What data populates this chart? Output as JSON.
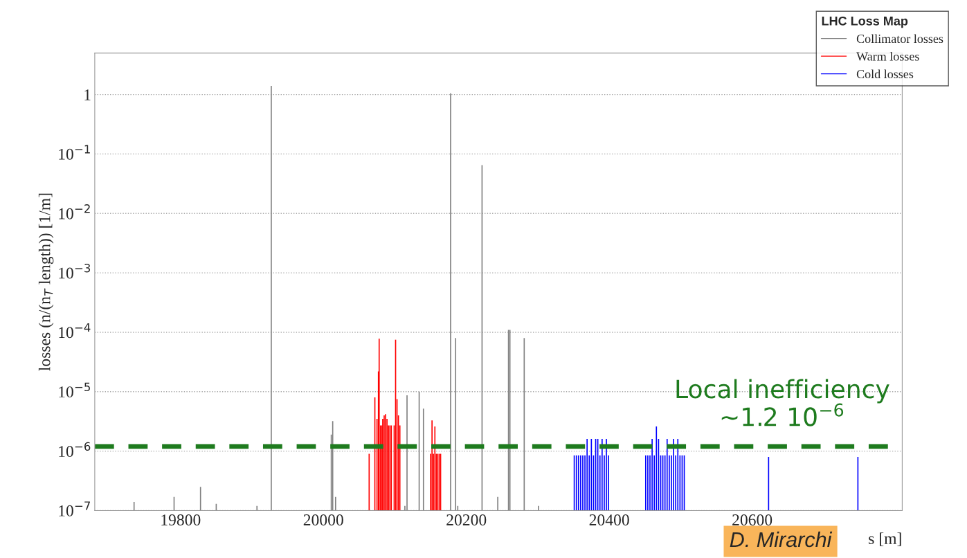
{
  "chart_data": {
    "type": "bar",
    "legend_title": "LHC Loss Map",
    "xlabel": "s [m]",
    "ylabel": "losses (n/(n$_{T}$ length)) [1/m]",
    "series": [
      {
        "name": "Collimator losses",
        "color": "#808080",
        "x": [
          19735,
          19791,
          19828,
          19850,
          19907,
          19927,
          20011,
          20013,
          20017,
          20114,
          20117,
          20134,
          20140,
          20178,
          20185,
          20188,
          20222,
          20244,
          20259,
          20261,
          20281,
          20301
        ],
        "values": [
          1.4e-07,
          1.7e-07,
          2.5e-07,
          1.3e-07,
          1.2e-07,
          1.4,
          1.9e-06,
          3.2e-06,
          1.7e-07,
          1.2e-07,
          8.7e-06,
          1e-05,
          5.2e-06,
          1.05,
          8e-05,
          1.2e-07,
          0.065,
          1.7e-07,
          0.00011,
          0.00011,
          8e-05,
          1.2e-07
        ]
      },
      {
        "name": "Warm losses",
        "color": "#ff0000",
        "x": [
          20064,
          20072,
          20075,
          20077,
          20078,
          20080,
          20082,
          20083,
          20085,
          20087,
          20089,
          20091,
          20093,
          20095,
          20099,
          20101,
          20103,
          20105,
          20107,
          20150,
          20152,
          20154,
          20156,
          20158,
          20160,
          20162,
          20164
        ],
        "values": [
          9e-07,
          8e-06,
          3.5e-06,
          2.2e-05,
          7.8e-05,
          2.7e-06,
          2.7e-06,
          3.5e-06,
          4e-06,
          4.2e-06,
          3.5e-06,
          2.7e-06,
          2.7e-06,
          2.7e-06,
          2.7e-06,
          7.5e-05,
          7.5e-06,
          4e-06,
          2.7e-06,
          9e-07,
          3.3e-06,
          9e-07,
          2.6e-06,
          9e-07,
          9e-07,
          9e-07,
          9e-07
        ]
      },
      {
        "name": "Cold losses",
        "color": "#0000ff",
        "x": [
          20351,
          20354,
          20357,
          20360,
          20363,
          20366,
          20369,
          20372,
          20375,
          20378,
          20381,
          20384,
          20387,
          20390,
          20393,
          20396,
          20399,
          20451,
          20454,
          20457,
          20460,
          20463,
          20466,
          20469,
          20472,
          20475,
          20478,
          20481,
          20484,
          20487,
          20490,
          20493,
          20496,
          20499,
          20502,
          20505,
          20623,
          20748
        ],
        "values": [
          8.5e-07,
          8.5e-07,
          8.5e-07,
          8.5e-07,
          8.5e-07,
          8.5e-07,
          1.6e-06,
          8.5e-07,
          1.6e-06,
          8.5e-07,
          1.6e-06,
          1.6e-06,
          8.5e-07,
          1.6e-06,
          8.5e-07,
          1.6e-06,
          8.5e-07,
          8.5e-07,
          8.5e-07,
          8.5e-07,
          1.6e-06,
          8.5e-07,
          2.6e-06,
          1.6e-06,
          8.5e-07,
          8.5e-07,
          8.5e-07,
          1.6e-06,
          8.5e-07,
          8.5e-07,
          1.6e-06,
          8.5e-07,
          1.6e-06,
          8.5e-07,
          8.5e-07,
          8.5e-07,
          8e-07,
          8e-07
        ]
      }
    ],
    "log": "y",
    "xlim": [
      19680,
      20810
    ],
    "ylim": [
      1e-07,
      5
    ],
    "xticks": [
      19800,
      20000,
      20200,
      20400,
      20600
    ],
    "yticks": [
      {
        "value": 1e-07,
        "label": "10$^{−7}$"
      },
      {
        "value": 1e-06,
        "label": "10$^{−6}$"
      },
      {
        "value": 1e-05,
        "label": "10$^{−5}$"
      },
      {
        "value": 0.0001,
        "label": "10$^{−4}$"
      },
      {
        "value": 0.001,
        "label": "10$^{−3}$"
      },
      {
        "value": 0.01,
        "label": "10$^{−2}$"
      },
      {
        "value": 0.1,
        "label": "10$^{−1}$"
      },
      1
    ],
    "ref_lines": [
      {
        "axis": "y",
        "value": 1.2e-06,
        "label": "Local inefficiency\n~1.2 10$^{−6}$",
        "color": "#1e7b1e",
        "line_style": "dashed"
      }
    ],
    "grid": "y",
    "legend": "top right",
    "annotations": [
      "D. Mirarchi"
    ]
  }
}
